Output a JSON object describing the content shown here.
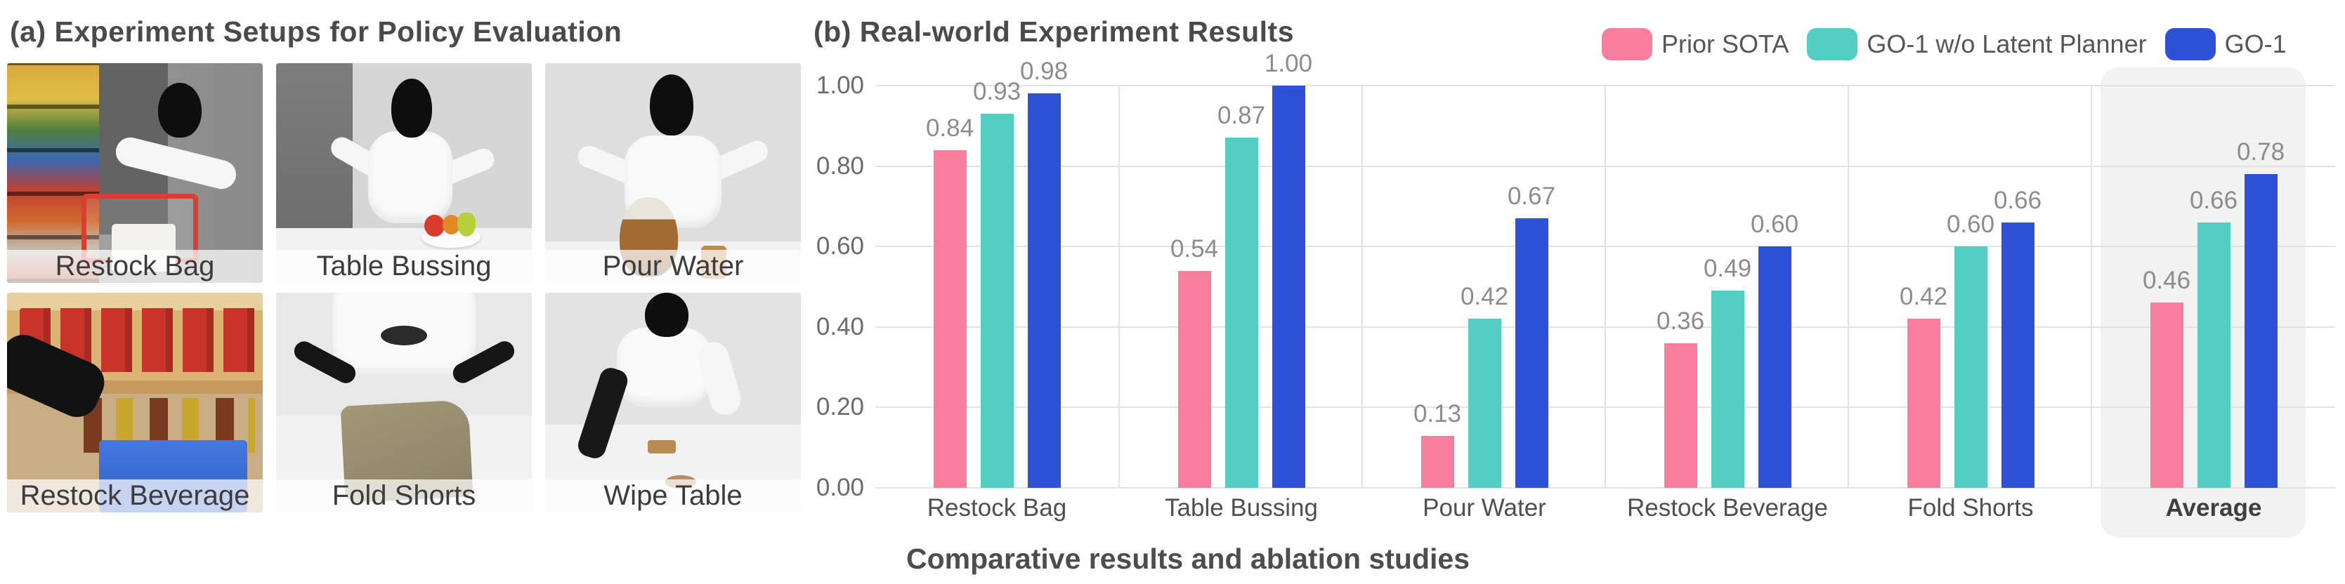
{
  "panel_a": {
    "title": "(a) Experiment Setups for Policy Evaluation",
    "photos": [
      {
        "label": "Restock Bag"
      },
      {
        "label": "Table Bussing"
      },
      {
        "label": "Pour Water"
      },
      {
        "label": "Restock Beverage"
      },
      {
        "label": "Fold Shorts"
      },
      {
        "label": "Wipe Table"
      }
    ]
  },
  "panel_b": {
    "title": "(b) Real-world Experiment Results",
    "caption": "Comparative results and ablation studies"
  },
  "chart_data": {
    "type": "bar",
    "title": "(b) Real-world Experiment Results",
    "categories": [
      "Restock Bag",
      "Table Bussing",
      "Pour Water",
      "Restock Beverage",
      "Fold Shorts",
      "Average"
    ],
    "series": [
      {
        "name": "Prior SOTA",
        "color": "#F97E9D",
        "values": [
          0.84,
          0.54,
          0.13,
          0.36,
          0.42,
          0.46
        ]
      },
      {
        "name": "GO-1 w/o Latent Planner",
        "color": "#54CEC3",
        "values": [
          0.93,
          0.87,
          0.42,
          0.49,
          0.6,
          0.66
        ]
      },
      {
        "name": "GO-1",
        "color": "#2D52D8",
        "values": [
          0.98,
          1.0,
          0.67,
          0.6,
          0.66,
          0.78
        ]
      }
    ],
    "ylim": [
      0,
      1.0
    ],
    "yticks": [
      "1.00",
      "0.80",
      "0.60",
      "0.40",
      "0.20",
      "0.00"
    ],
    "grid": "horizontal",
    "legend_position": "top-right",
    "value_labels": true,
    "value_label_color": "#8c8c8c",
    "highlight_category": "Average",
    "highlight_color": "#f2f2f3",
    "xlabel": "",
    "ylabel": ""
  }
}
